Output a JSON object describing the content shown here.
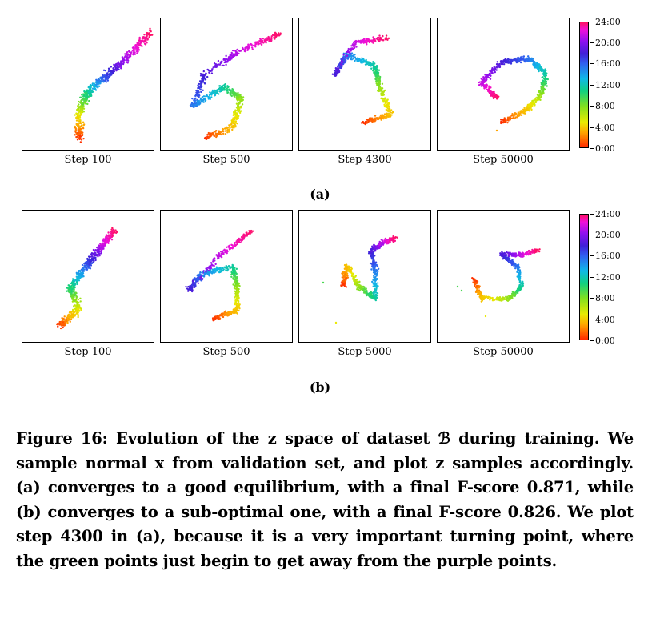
{
  "figure": {
    "row_a": {
      "label": "(a)",
      "steps": [
        "Step 100",
        "Step 500",
        "Step 4300",
        "Step 50000"
      ]
    },
    "row_b": {
      "label": "(b)",
      "steps": [
        "Step 100",
        "Step 500",
        "Step 5000",
        "Step 50000"
      ]
    },
    "colorbar_ticks": [
      "24:00",
      "20:00",
      "16:00",
      "12:00",
      "8:00",
      "4:00",
      "0:00"
    ]
  },
  "caption": "Figure 16: Evolution of the z space of dataset ℬ during training. We sample normal x from validation set, and plot z samples accordingly. (a) converges to a good equilibrium, with a final F-score 0.871, while (b) converges to a sub-optimal one, with a final F-score 0.826. We plot step 4300 in (a), because it is a very important turning point, where the green points just begin to get away from the purple points.",
  "colors": {
    "scale": [
      "#ff2a00",
      "#ffa500",
      "#eaea00",
      "#80e020",
      "#10d080",
      "#10b8e8",
      "#3060f0",
      "#4020d8",
      "#9010f0",
      "#f010d8",
      "#ff1060"
    ]
  }
}
